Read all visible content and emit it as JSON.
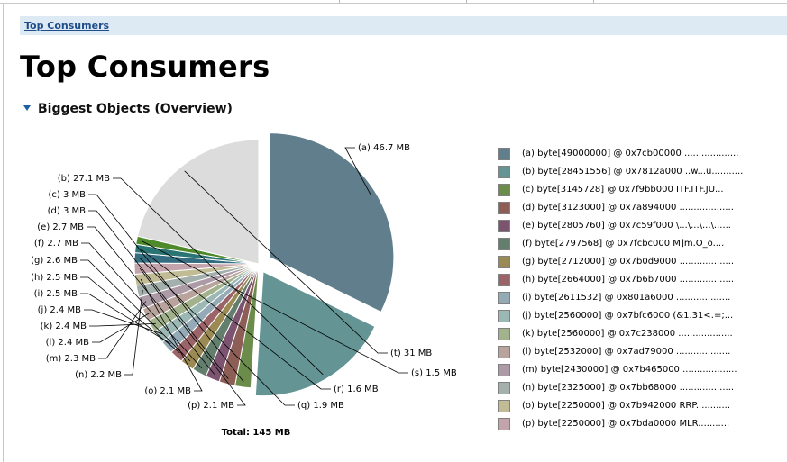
{
  "breadcrumb": {
    "link": "Top Consumers"
  },
  "page": {
    "title": "Top Consumers"
  },
  "section": {
    "title": "Biggest Objects (Overview)"
  },
  "chart_data": {
    "type": "pie",
    "total_label": "Total: 145 MB",
    "slices": [
      {
        "letter": "(a)",
        "label": "46.7 MB",
        "value": 46.7,
        "color": "#607e8c",
        "legend": "byte[49000000] @ 0x7cb00000  ..................."
      },
      {
        "letter": "(b)",
        "label": "27.1 MB",
        "value": 27.1,
        "color": "#649494",
        "legend": "byte[28451556] @ 0x7812a000  ..w...u..........."
      },
      {
        "letter": "(c)",
        "label": "3 MB",
        "value": 3.0,
        "color": "#6c8c4c",
        "legend": "byte[3145728] @ 0x7f9bb000  ITF.ITF.JU..."
      },
      {
        "letter": "(d)",
        "label": "3 MB",
        "value": 3.0,
        "color": "#8c5e56",
        "legend": "byte[3123000] @ 0x7a894000  ..................."
      },
      {
        "letter": "(e)",
        "label": "2.7 MB",
        "value": 2.7,
        "color": "#7c5470",
        "legend": "byte[2805760] @ 0x7c59f000  \\...\\...\\...\\......"
      },
      {
        "letter": "(f)",
        "label": "2.7 MB",
        "value": 2.7,
        "color": "#647e6e",
        "legend": "byte[2797568] @ 0x7fcbc000  M]m.O_o...."
      },
      {
        "letter": "(g)",
        "label": "2.6 MB",
        "value": 2.6,
        "color": "#9c8a54",
        "legend": "byte[2712000] @ 0x7b0d9000  ..................."
      },
      {
        "letter": "(h)",
        "label": "2.5 MB",
        "value": 2.5,
        "color": "#9a6468",
        "legend": "byte[2664000] @ 0x7b6b7000  ..................."
      },
      {
        "letter": "(i)",
        "label": "2.5 MB",
        "value": 2.5,
        "color": "#94aab6",
        "legend": "byte[2611532] @ 0x801a6000  ..................."
      },
      {
        "letter": "(j)",
        "label": "2.4 MB",
        "value": 2.4,
        "color": "#9cb8b4",
        "legend": "byte[2560000] @ 0x7bfc6000  (&1.31<.=;..."
      },
      {
        "letter": "(k)",
        "label": "2.4 MB",
        "value": 2.4,
        "color": "#a2b28c",
        "legend": "byte[2560000] @ 0x7c238000  ..................."
      },
      {
        "letter": "(l)",
        "label": "2.4 MB",
        "value": 2.4,
        "color": "#b8a49c",
        "legend": "byte[2532000] @ 0x7ad79000  ..................."
      },
      {
        "letter": "(m)",
        "label": "2.3 MB",
        "value": 2.3,
        "color": "#ac9aa6",
        "legend": "byte[2430000] @ 0x7b465000  ..................."
      },
      {
        "letter": "(n)",
        "label": "2.2 MB",
        "value": 2.2,
        "color": "#a4b0ac",
        "legend": "byte[2325000] @ 0x7bb68000  ..................."
      },
      {
        "letter": "(o)",
        "label": "2.1 MB",
        "value": 2.1,
        "color": "#c2bc96",
        "legend": "byte[2250000] @ 0x7b942000  RRP............"
      },
      {
        "letter": "(p)",
        "label": "2.1 MB",
        "value": 2.1,
        "color": "#c4a4ac",
        "legend": "byte[2250000] @ 0x7bda0000  MLR..........."
      },
      {
        "letter": "(q)",
        "label": "1.9 MB",
        "value": 1.9,
        "color": "#346c80",
        "legend": ""
      },
      {
        "letter": "(r)",
        "label": "1.6 MB",
        "value": 1.6,
        "color": "#2a7474",
        "legend": ""
      },
      {
        "letter": "(s)",
        "label": "1.5 MB",
        "value": 1.5,
        "color": "#4e8a2a",
        "legend": ""
      },
      {
        "letter": "(t)",
        "label": "31 MB",
        "value": 31.0,
        "color": "#dcdcdc",
        "legend": ""
      }
    ]
  }
}
